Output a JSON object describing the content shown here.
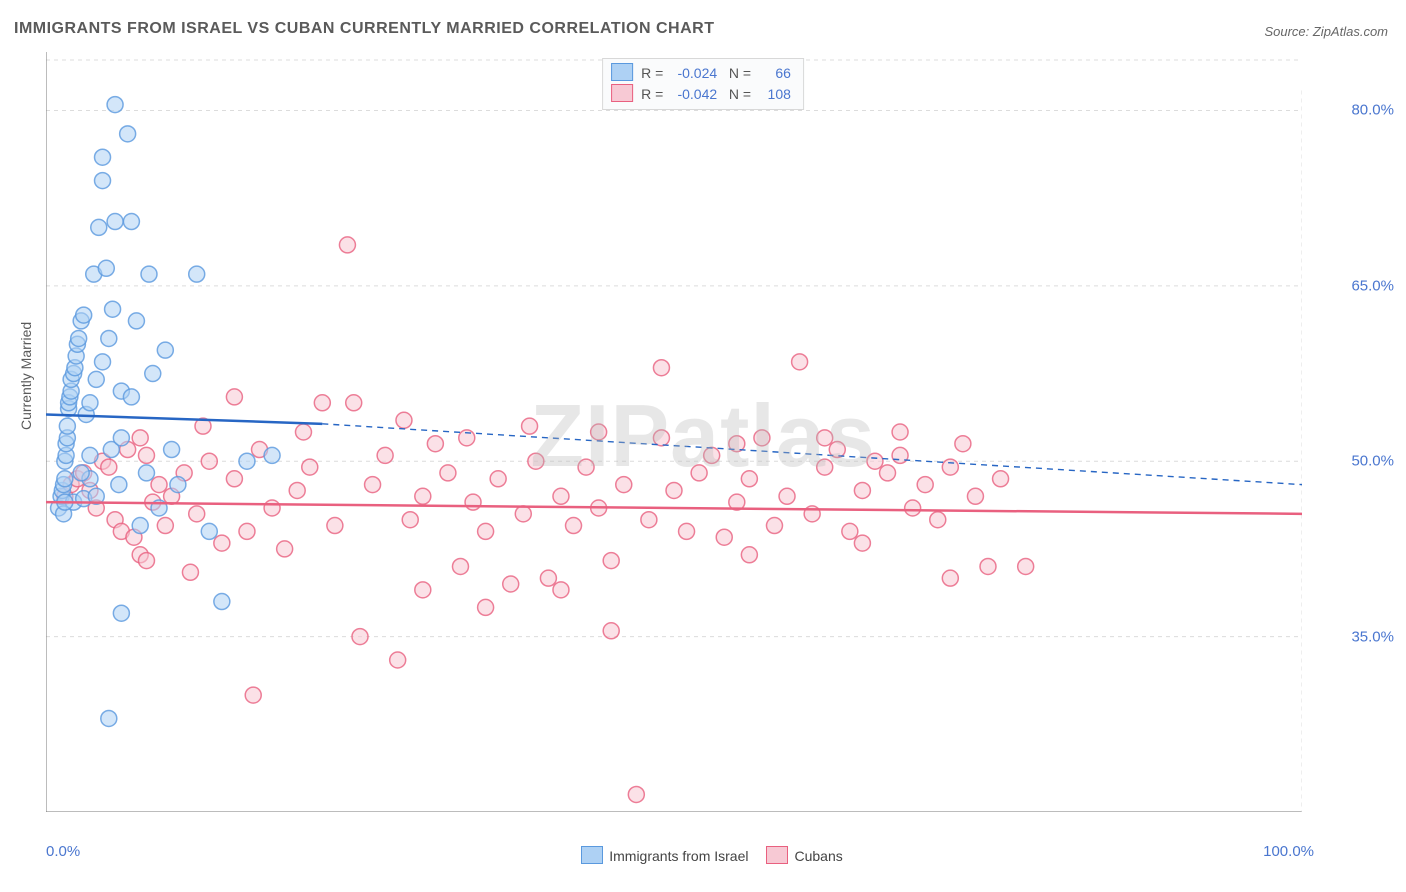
{
  "title": "IMMIGRANTS FROM ISRAEL VS CUBAN CURRENTLY MARRIED CORRELATION CHART",
  "source": "Source: ZipAtlas.com",
  "watermark": "ZIPatlas",
  "ylabel": "Currently Married",
  "chart": {
    "type": "scatter-correlation",
    "background_color": "#ffffff",
    "grid_color": "#dcdcdc",
    "axis_color": "#7a7a7a",
    "tick_color": "#4a76cf",
    "xlim": [
      0,
      100
    ],
    "ylim": [
      20,
      85
    ],
    "yticks": [
      {
        "v": 80,
        "label": "80.0%"
      },
      {
        "v": 65,
        "label": "65.0%"
      },
      {
        "v": 50,
        "label": "50.0%"
      },
      {
        "v": 35,
        "label": "35.0%"
      }
    ],
    "xticks": [
      {
        "v": 0,
        "label": "0.0%"
      },
      {
        "v": 100,
        "label": "100.0%"
      }
    ],
    "marker_radius": 8,
    "marker_stroke_width": 1.5,
    "trend_line_width": 2.5,
    "series": [
      {
        "name": "Immigrants from Israel",
        "color_fill": "#aed1f4",
        "color_stroke": "#5a99de",
        "trend_color": "#2766c4",
        "R": "-0.024",
        "N": "66",
        "trend": {
          "x0": 0,
          "y0": 54.0,
          "x1_solid": 22,
          "y1_solid": 53.2,
          "x1": 100,
          "y1": 48.0
        },
        "points": [
          [
            1.0,
            46.0
          ],
          [
            1.2,
            47.0
          ],
          [
            1.3,
            47.5
          ],
          [
            1.4,
            48.0
          ],
          [
            1.5,
            48.5
          ],
          [
            1.5,
            50.0
          ],
          [
            1.6,
            50.5
          ],
          [
            1.6,
            51.5
          ],
          [
            1.7,
            52.0
          ],
          [
            1.7,
            53.0
          ],
          [
            1.8,
            54.5
          ],
          [
            1.8,
            55.0
          ],
          [
            1.9,
            55.5
          ],
          [
            2.0,
            56.0
          ],
          [
            2.0,
            57.0
          ],
          [
            2.2,
            57.5
          ],
          [
            2.3,
            58.0
          ],
          [
            2.4,
            59.0
          ],
          [
            2.5,
            60.0
          ],
          [
            2.6,
            60.5
          ],
          [
            2.8,
            62.0
          ],
          [
            3.0,
            62.5
          ],
          [
            3.2,
            54.0
          ],
          [
            3.5,
            48.5
          ],
          [
            3.5,
            55.0
          ],
          [
            3.8,
            66.0
          ],
          [
            4.0,
            57.0
          ],
          [
            4.2,
            70.0
          ],
          [
            4.5,
            74.0
          ],
          [
            4.5,
            76.0
          ],
          [
            4.8,
            66.5
          ],
          [
            5.0,
            60.5
          ],
          [
            5.2,
            51.0
          ],
          [
            5.3,
            63.0
          ],
          [
            5.5,
            80.5
          ],
          [
            5.8,
            48.0
          ],
          [
            6.0,
            52.0
          ],
          [
            6.0,
            56.0
          ],
          [
            6.5,
            78.0
          ],
          [
            6.8,
            70.5
          ],
          [
            7.2,
            62.0
          ],
          [
            7.5,
            44.5
          ],
          [
            8.0,
            49.0
          ],
          [
            8.2,
            66.0
          ],
          [
            8.5,
            57.5
          ],
          [
            9.0,
            46.0
          ],
          [
            9.5,
            59.5
          ],
          [
            10.0,
            51.0
          ],
          [
            10.5,
            48.0
          ],
          [
            2.2,
            46.5
          ],
          [
            3.0,
            46.8
          ],
          [
            12.0,
            66.0
          ],
          [
            13.0,
            44.0
          ],
          [
            14.0,
            38.0
          ],
          [
            16.0,
            50.0
          ],
          [
            18.0,
            50.5
          ],
          [
            5.0,
            28.0
          ],
          [
            6.0,
            37.0
          ],
          [
            1.4,
            45.5
          ],
          [
            1.5,
            46.5
          ],
          [
            2.8,
            49.0
          ],
          [
            3.5,
            50.5
          ],
          [
            4.0,
            47.0
          ],
          [
            4.5,
            58.5
          ],
          [
            5.5,
            70.5
          ],
          [
            6.8,
            55.5
          ]
        ]
      },
      {
        "name": "Cubans",
        "color_fill": "#f7c9d4",
        "color_stroke": "#e9607f",
        "trend_color": "#e9607f",
        "R": "-0.042",
        "N": "108",
        "trend": {
          "x0": 0,
          "y0": 46.5,
          "x1_solid": 100,
          "y1_solid": 45.5,
          "x1": 100,
          "y1": 45.5
        },
        "points": [
          [
            1.5,
            47.0
          ],
          [
            2.0,
            48.0
          ],
          [
            2.5,
            48.5
          ],
          [
            3.0,
            49.0
          ],
          [
            3.5,
            47.5
          ],
          [
            4.0,
            46.0
          ],
          [
            4.5,
            50.0
          ],
          [
            5.0,
            49.5
          ],
          [
            5.5,
            45.0
          ],
          [
            6.0,
            44.0
          ],
          [
            6.5,
            51.0
          ],
          [
            7.0,
            43.5
          ],
          [
            7.5,
            42.0
          ],
          [
            8.0,
            50.5
          ],
          [
            8.5,
            46.5
          ],
          [
            9.0,
            48.0
          ],
          [
            9.5,
            44.5
          ],
          [
            10.0,
            47.0
          ],
          [
            11.0,
            49.0
          ],
          [
            12.0,
            45.5
          ],
          [
            13.0,
            50.0
          ],
          [
            14.0,
            43.0
          ],
          [
            15.0,
            48.5
          ],
          [
            16.0,
            44.0
          ],
          [
            16.5,
            30.0
          ],
          [
            17.0,
            51.0
          ],
          [
            18.0,
            46.0
          ],
          [
            19.0,
            42.5
          ],
          [
            20.0,
            47.5
          ],
          [
            21.0,
            49.5
          ],
          [
            22.0,
            55.0
          ],
          [
            23.0,
            44.5
          ],
          [
            24.0,
            68.5
          ],
          [
            25.0,
            35.0
          ],
          [
            26.0,
            48.0
          ],
          [
            27.0,
            50.5
          ],
          [
            28.0,
            33.0
          ],
          [
            29.0,
            45.0
          ],
          [
            30.0,
            47.0
          ],
          [
            31.0,
            51.5
          ],
          [
            32.0,
            49.0
          ],
          [
            33.0,
            41.0
          ],
          [
            34.0,
            46.5
          ],
          [
            35.0,
            44.0
          ],
          [
            36.0,
            48.5
          ],
          [
            37.0,
            39.5
          ],
          [
            38.0,
            45.5
          ],
          [
            39.0,
            50.0
          ],
          [
            40.0,
            40.0
          ],
          [
            41.0,
            47.0
          ],
          [
            42.0,
            44.5
          ],
          [
            43.0,
            49.5
          ],
          [
            44.0,
            46.0
          ],
          [
            45.0,
            41.5
          ],
          [
            46.0,
            48.0
          ],
          [
            47.0,
            21.5
          ],
          [
            48.0,
            45.0
          ],
          [
            49.0,
            58.0
          ],
          [
            50.0,
            47.5
          ],
          [
            51.0,
            44.0
          ],
          [
            52.0,
            49.0
          ],
          [
            53.0,
            50.5
          ],
          [
            54.0,
            43.5
          ],
          [
            55.0,
            46.5
          ],
          [
            56.0,
            48.5
          ],
          [
            57.0,
            52.0
          ],
          [
            58.0,
            44.5
          ],
          [
            59.0,
            47.0
          ],
          [
            60.0,
            58.5
          ],
          [
            61.0,
            45.5
          ],
          [
            62.0,
            49.5
          ],
          [
            63.0,
            51.0
          ],
          [
            64.0,
            44.0
          ],
          [
            65.0,
            47.5
          ],
          [
            66.0,
            50.0
          ],
          [
            67.0,
            49.0
          ],
          [
            68.0,
            52.5
          ],
          [
            69.0,
            46.0
          ],
          [
            70.0,
            48.0
          ],
          [
            71.0,
            45.0
          ],
          [
            72.0,
            49.5
          ],
          [
            73.0,
            51.5
          ],
          [
            74.0,
            47.0
          ],
          [
            75.0,
            41.0
          ],
          [
            76.0,
            48.5
          ],
          [
            7.5,
            52.0
          ],
          [
            12.5,
            53.0
          ],
          [
            15.0,
            55.5
          ],
          [
            20.5,
            52.5
          ],
          [
            24.5,
            55.0
          ],
          [
            28.5,
            53.5
          ],
          [
            33.5,
            52.0
          ],
          [
            38.5,
            53.0
          ],
          [
            44.0,
            52.5
          ],
          [
            49.0,
            52.0
          ],
          [
            55.0,
            51.5
          ],
          [
            62.0,
            52.0
          ],
          [
            68.0,
            50.5
          ],
          [
            30.0,
            39.0
          ],
          [
            35.0,
            37.5
          ],
          [
            41.0,
            39.0
          ],
          [
            45.0,
            35.5
          ],
          [
            56.0,
            42.0
          ],
          [
            65.0,
            43.0
          ],
          [
            72.0,
            40.0
          ],
          [
            78.0,
            41.0
          ],
          [
            8.0,
            41.5
          ],
          [
            11.5,
            40.5
          ]
        ]
      }
    ]
  },
  "bottom_legend": [
    {
      "label": "Immigrants from Israel",
      "fill": "#aed1f4",
      "stroke": "#5a99de"
    },
    {
      "label": "Cubans",
      "fill": "#f7c9d4",
      "stroke": "#e9607f"
    }
  ]
}
